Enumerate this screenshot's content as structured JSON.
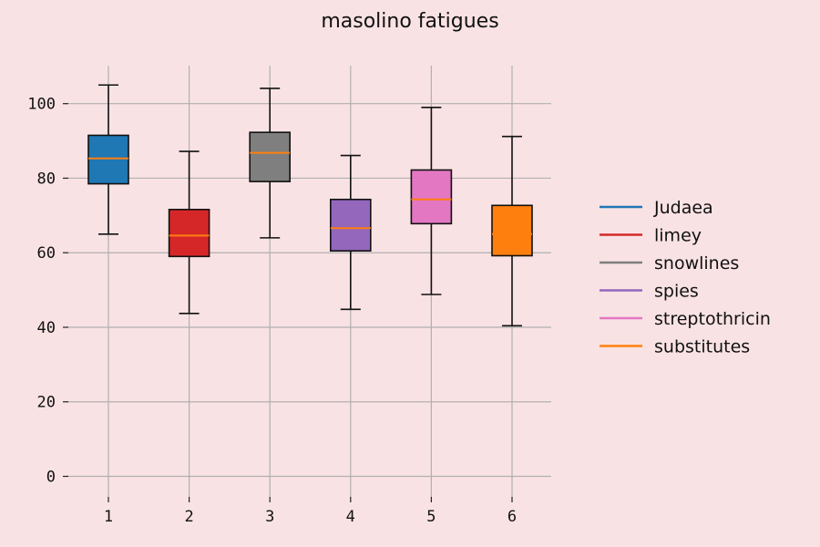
{
  "chart_data": {
    "type": "boxplot",
    "title": "masolino fatigues",
    "xlabel": "",
    "ylabel": "",
    "categories": [
      "1",
      "2",
      "3",
      "4",
      "5",
      "6"
    ],
    "ylim": [
      -5,
      110
    ],
    "yticks": [
      0,
      20,
      40,
      60,
      80,
      100
    ],
    "grid": true,
    "legend_position": "right",
    "median_color": "#ff7f0e",
    "series": [
      {
        "name": "Judaea",
        "color": "#1f77b4",
        "whisker_low": 65,
        "q1": 78.5,
        "median": 85.3,
        "q3": 91.5,
        "whisker_high": 105
      },
      {
        "name": "limey",
        "color": "#d62728",
        "whisker_low": 43.7,
        "q1": 59,
        "median": 64.6,
        "q3": 71.6,
        "whisker_high": 87.2
      },
      {
        "name": "snowlines",
        "color": "#7f7f7f",
        "whisker_low": 64,
        "q1": 79.1,
        "median": 86.8,
        "q3": 92.3,
        "whisker_high": 104.1
      },
      {
        "name": "spies",
        "color": "#9467bd",
        "whisker_low": 44.8,
        "q1": 60.5,
        "median": 66.6,
        "q3": 74.3,
        "whisker_high": 86.1
      },
      {
        "name": "streptothricin",
        "color": "#e377c2",
        "whisker_low": 48.8,
        "q1": 67.8,
        "median": 74.3,
        "q3": 82.2,
        "whisker_high": 99
      },
      {
        "name": "substitutes",
        "color": "#ff7f0e",
        "whisker_low": 40.4,
        "q1": 59.2,
        "median": 65,
        "q3": 72.7,
        "whisker_high": 91.2
      }
    ]
  }
}
